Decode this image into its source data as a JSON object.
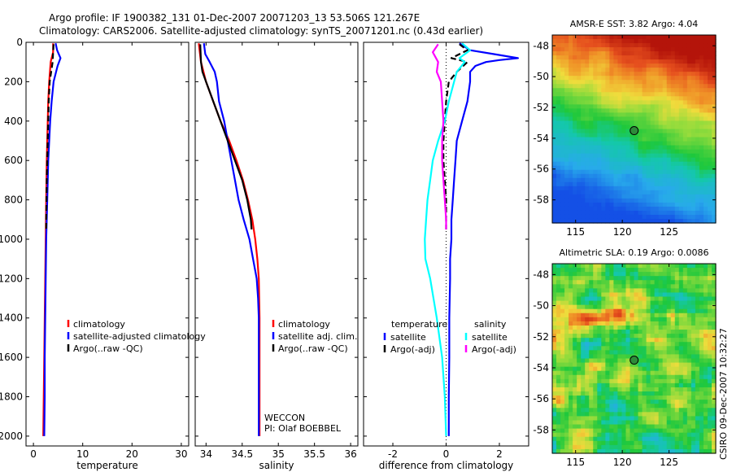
{
  "title": {
    "line1": "Argo profile: IF 1900382_131 01-Dec-2007 20071203_13 53.506S 121.267E",
    "line2": "Climatology: CARS2006. Satellite-adjusted climatology: synTS_20071201.nc (0.43d earlier)"
  },
  "credit": "CSIRO 09-Dec-2007 10:32:27",
  "chart_data": [
    {
      "id": "temperature",
      "type": "line",
      "xlabel": "temperature",
      "ylabel": "",
      "xlim": [
        -1.5,
        31.5
      ],
      "ylim": [
        2050,
        0
      ],
      "xticks": [
        0,
        10,
        20,
        30
      ],
      "yticks": [
        0,
        200,
        400,
        600,
        800,
        1000,
        1200,
        1400,
        1600,
        1800,
        2000
      ],
      "legend": [
        "climatology",
        "satellite-adjusted climatology",
        "Argo(..raw -QC)"
      ],
      "legend_position": "lower-right",
      "series": [
        {
          "name": "climatology",
          "color": "#ff0000",
          "depth": [
            5,
            50,
            100,
            200,
            300,
            400,
            600,
            800,
            1000,
            1200,
            1400,
            1600,
            1800,
            2000
          ],
          "values": [
            4.0,
            4.0,
            3.5,
            3.2,
            3.0,
            2.9,
            2.7,
            2.6,
            2.5,
            2.4,
            2.3,
            2.2,
            2.1,
            2.0
          ]
        },
        {
          "name": "satellite-adjusted climatology",
          "color": "#0000ff",
          "depth": [
            5,
            40,
            80,
            120,
            200,
            300,
            400,
            600,
            800,
            1000,
            1200,
            1400,
            1600,
            1800,
            2000
          ],
          "values": [
            4.5,
            4.8,
            5.5,
            4.9,
            4.1,
            3.7,
            3.4,
            3.0,
            2.8,
            2.6,
            2.5,
            2.4,
            2.3,
            2.3,
            2.2
          ]
        },
        {
          "name": "Argo(..raw -QC)",
          "color": "#000000",
          "dash": true,
          "depth": [
            10,
            50,
            100,
            150,
            200,
            300,
            400,
            500,
            600,
            700,
            800,
            900,
            950
          ],
          "values": [
            4.1,
            4.0,
            3.9,
            3.6,
            3.3,
            3.1,
            3.0,
            2.9,
            2.8,
            2.7,
            2.65,
            2.6,
            2.6
          ]
        }
      ]
    },
    {
      "id": "salinity",
      "type": "line",
      "xlabel": "salinity",
      "ylabel": "",
      "xlim": [
        33.85,
        36.1
      ],
      "ylim": [
        2050,
        0
      ],
      "xticks": [
        34,
        34.5,
        35,
        35.5,
        36
      ],
      "yticks": [
        0,
        200,
        400,
        600,
        800,
        1000,
        1200,
        1400,
        1600,
        1800,
        2000
      ],
      "legend": [
        "climatology",
        "satellite adj. clim.",
        "Argo(..raw -QC)"
      ],
      "legend_position": "lower-right",
      "annotation": [
        "WECCON",
        "PI: Olaf BOEBBEL"
      ],
      "series": [
        {
          "name": "climatology",
          "color": "#ff0000",
          "depth": [
            5,
            100,
            200,
            300,
            400,
            500,
            600,
            700,
            800,
            900,
            1000,
            1100,
            1200,
            1400,
            1600,
            1800,
            2000
          ],
          "values": [
            33.9,
            33.93,
            34.0,
            34.1,
            34.2,
            34.32,
            34.42,
            34.51,
            34.58,
            34.64,
            34.68,
            34.71,
            34.73,
            34.74,
            34.74,
            34.74,
            34.74
          ]
        },
        {
          "name": "satellite adj. clim.",
          "color": "#0000ff",
          "depth": [
            5,
            60,
            100,
            150,
            200,
            300,
            400,
            500,
            600,
            700,
            800,
            900,
            1000,
            1100,
            1200,
            1300,
            1400,
            1600,
            1800,
            2000
          ],
          "values": [
            33.97,
            33.99,
            34.05,
            34.12,
            34.15,
            34.18,
            34.25,
            34.3,
            34.35,
            34.4,
            34.45,
            34.52,
            34.6,
            34.65,
            34.7,
            34.72,
            34.73,
            34.73,
            34.73,
            34.73
          ]
        },
        {
          "name": "Argo(..raw -QC)",
          "color": "#000000",
          "depth": [
            10,
            100,
            150,
            200,
            300,
            400,
            500,
            600,
            700,
            800,
            900,
            950
          ],
          "values": [
            33.92,
            33.93,
            33.95,
            34.0,
            34.1,
            34.2,
            34.3,
            34.4,
            34.5,
            34.57,
            34.62,
            34.63
          ]
        }
      ]
    },
    {
      "id": "difference",
      "type": "line",
      "xlabel": "difference from climatology",
      "ylabel": "",
      "xlim": [
        -3.1,
        3.1
      ],
      "ylim": [
        2050,
        0
      ],
      "xticks": [
        -2,
        0,
        2
      ],
      "yticks": [
        0,
        200,
        400,
        600,
        800,
        1000,
        1200,
        1400,
        1600,
        1800,
        2000
      ],
      "legend_title_temperature": "temperature",
      "legend_title_salinity": "salinity",
      "legend": [
        "satellite",
        "Argo(-adj)",
        "satellite",
        "Argo(-adj)"
      ],
      "legend_position": "lower-center",
      "series": [
        {
          "name": "satellite",
          "group": "temperature",
          "color": "#0000ff",
          "depth": [
            5,
            40,
            60,
            80,
            90,
            100,
            120,
            150,
            200,
            300,
            400,
            500,
            600,
            700,
            800,
            900,
            1000,
            1100,
            1200,
            1400,
            1600,
            1800,
            2000
          ],
          "values": [
            0.5,
            0.9,
            1.8,
            2.7,
            2.0,
            1.5,
            1.1,
            0.9,
            0.9,
            0.8,
            0.6,
            0.4,
            0.35,
            0.3,
            0.25,
            0.2,
            0.2,
            0.15,
            0.15,
            0.12,
            0.12,
            0.1,
            0.1
          ]
        },
        {
          "name": "Argo(-adj)",
          "group": "temperature",
          "color": "#000000",
          "dash": true,
          "depth": [
            10,
            40,
            80,
            100,
            150,
            200,
            300,
            400,
            500,
            600,
            700,
            800,
            900,
            950
          ],
          "values": [
            0.5,
            0.8,
            0.2,
            0.8,
            0.4,
            0.1,
            0.0,
            -0.05,
            -0.1,
            -0.1,
            -0.05,
            0.0,
            0.0,
            0.0
          ]
        },
        {
          "name": "satellite",
          "group": "salinity",
          "color": "#00ffff",
          "depth": [
            5,
            40,
            80,
            100,
            150,
            200,
            300,
            400,
            500,
            600,
            700,
            800,
            900,
            1000,
            1100,
            1200,
            1400,
            1600,
            1800,
            2000
          ],
          "values": [
            0.6,
            0.9,
            0.5,
            0.7,
            0.4,
            0.3,
            0.1,
            -0.05,
            -0.3,
            -0.5,
            -0.6,
            -0.7,
            -0.75,
            -0.8,
            -0.78,
            -0.6,
            -0.35,
            -0.15,
            -0.05,
            0.0
          ]
        },
        {
          "name": "Argo(-adj)",
          "group": "salinity",
          "color": "#ff00ff",
          "depth": [
            10,
            50,
            100,
            150,
            200,
            300,
            400,
            500,
            600,
            700,
            800,
            900,
            950
          ],
          "values": [
            -0.3,
            -0.5,
            -0.3,
            -0.35,
            -0.2,
            -0.15,
            -0.1,
            -0.15,
            -0.15,
            -0.1,
            -0.05,
            0.0,
            0.0
          ]
        }
      ]
    },
    {
      "id": "sst_map",
      "type": "heatmap",
      "title": "AMSR-E SST: 3.82 Argo: 4.04",
      "xlim": [
        112.5,
        130
      ],
      "ylim": [
        -59.5,
        -47.3
      ],
      "xticks": [
        115,
        120,
        125
      ],
      "yticks": [
        -48,
        -50,
        -52,
        -54,
        -56,
        -58
      ],
      "marker": {
        "lon": 121.267,
        "lat": -53.506
      }
    },
    {
      "id": "sla_map",
      "type": "heatmap",
      "title": "Altimetric SLA: 0.19 Argo: 0.0086",
      "xlim": [
        112.5,
        130
      ],
      "ylim": [
        -59.5,
        -47.3
      ],
      "xticks": [
        115,
        120,
        125
      ],
      "yticks": [
        -48,
        -50,
        -52,
        -54,
        -56,
        -58
      ],
      "marker": {
        "lon": 121.267,
        "lat": -53.506
      }
    }
  ]
}
